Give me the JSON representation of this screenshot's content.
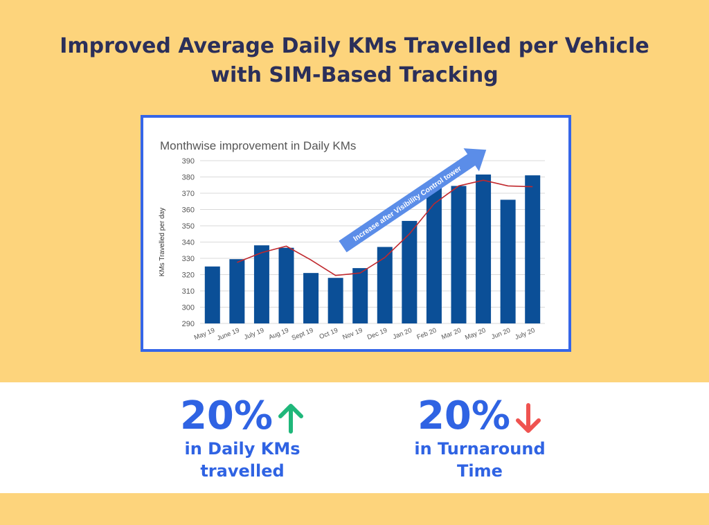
{
  "headline": {
    "line1": "Improved Average Daily KMs Travelled per Vehicle",
    "line2": "with SIM-Based Tracking"
  },
  "chart_data": {
    "type": "bar",
    "title": "Monthwise improvement in Daily KMs",
    "xlabel": "",
    "ylabel": "KMs Travelled per day",
    "ylim": [
      290,
      390
    ],
    "yticks": [
      290,
      300,
      310,
      320,
      330,
      340,
      350,
      360,
      370,
      380,
      390
    ],
    "grid": true,
    "categories": [
      "May 19",
      "June 19",
      "July 19",
      "Aug 19",
      "Sept 19",
      "Oct 19",
      "Nov 19",
      "Dec 19",
      "Jan 20",
      "Feb 20",
      "Mar 20",
      "May 20",
      "Jun 20",
      "July 20"
    ],
    "series": [
      {
        "values": [
          325,
          329.5,
          338,
          336.5,
          321,
          318,
          324,
          337,
          353,
          374,
          374.5,
          381.5,
          366,
          381
        ],
        "color": "#0b4f97"
      }
    ],
    "trend_line": {
      "type": "line",
      "color": "#c0282d",
      "values": [
        null,
        327.5,
        333.5,
        337.5,
        329,
        319.5,
        321,
        330.5,
        345,
        363.5,
        374.5,
        378,
        374.5,
        374
      ]
    },
    "annotation": {
      "text": "Increase after Visibility Control  tower",
      "color": "#5b8de8"
    }
  },
  "stats": {
    "left": {
      "value": "20%",
      "direction": "up",
      "arrow_color": "#1fb77a",
      "label_line1": "in Daily KMs",
      "label_line2": "travelled"
    },
    "right": {
      "value": "20%",
      "direction": "down",
      "arrow_color": "#ef5350",
      "label_line1": "in Turnaround",
      "label_line2": "Time"
    }
  },
  "colors": {
    "background_band": "#fdd47c",
    "headline": "#2b2f5a",
    "accent": "#2f63e3",
    "frame": "#3566e8"
  }
}
